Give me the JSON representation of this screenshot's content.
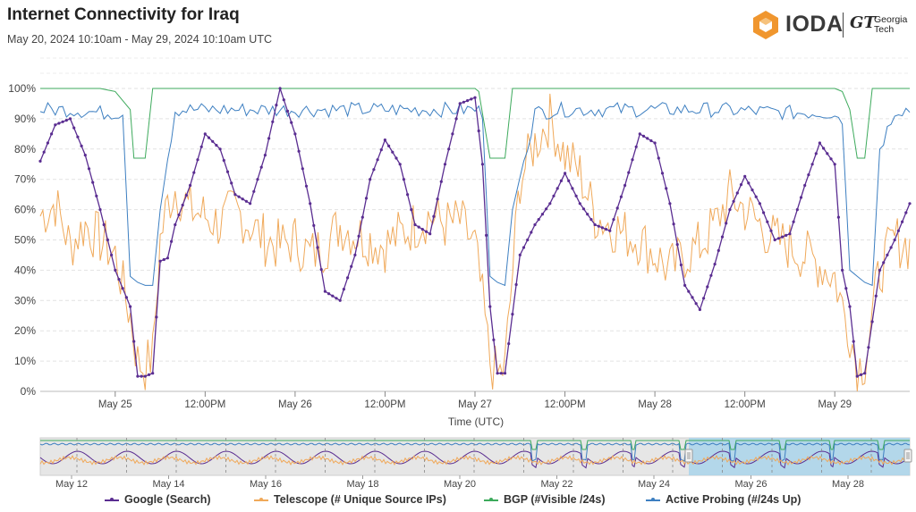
{
  "header": {
    "title": "Internet Connectivity for Iraq",
    "subtitle": "May 20, 2024 10:10am - May 29, 2024 10:10am UTC"
  },
  "logo": {
    "brand": "IODA",
    "partner_mark": "GT",
    "partner_name_line1": "Georgia",
    "partner_name_line2": "Tech"
  },
  "chart_data": {
    "type": "line",
    "xlabel": "Time (UTC)",
    "ylabel": "",
    "ylim": [
      0,
      100
    ],
    "y_ticks": [
      "0%",
      "10%",
      "20%",
      "30%",
      "40%",
      "50%",
      "60%",
      "70%",
      "80%",
      "90%",
      "100%"
    ],
    "x_ticks": [
      "May 25",
      "12:00PM",
      "May 26",
      "12:00PM",
      "May 27",
      "12:00PM",
      "May 28",
      "12:00PM",
      "May 29"
    ],
    "x_tick_hours": [
      0,
      12,
      24,
      36,
      48,
      60,
      72,
      84,
      96
    ],
    "x_range_hours": [
      -10,
      106
    ],
    "colors": {
      "google": "#5a2d91",
      "telescope": "#f0a95a",
      "bgp": "#3daa5c",
      "active_probing": "#3d7fc1"
    },
    "series": [
      {
        "name": "Google (Search)",
        "key": "google",
        "x": [
          -10,
          -8,
          -6,
          -4,
          -2,
          0,
          2,
          3,
          4,
          5,
          6,
          7,
          8,
          10,
          12,
          14,
          16,
          18,
          20,
          22,
          24,
          26,
          28,
          30,
          32,
          34,
          36,
          38,
          40,
          42,
          44,
          46,
          48,
          49,
          50,
          51,
          52,
          54,
          56,
          58,
          60,
          62,
          64,
          66,
          68,
          70,
          72,
          74,
          76,
          78,
          80,
          82,
          84,
          86,
          88,
          90,
          92,
          94,
          96,
          97,
          98,
          99,
          100,
          102,
          104,
          106
        ],
        "values": [
          76,
          88,
          90,
          78,
          60,
          40,
          28,
          5,
          5,
          6,
          43,
          44,
          55,
          68,
          85,
          80,
          65,
          62,
          78,
          100,
          85,
          62,
          33,
          30,
          45,
          70,
          83,
          75,
          55,
          52,
          75,
          95,
          97,
          75,
          28,
          6,
          6,
          45,
          55,
          62,
          72,
          62,
          55,
          53,
          68,
          85,
          82,
          62,
          35,
          27,
          42,
          60,
          71,
          62,
          50,
          52,
          68,
          82,
          75,
          40,
          28,
          5,
          6,
          40,
          50,
          62
        ]
      },
      {
        "name": "Telescope (# Unique Source IPs)",
        "key": "telescope",
        "x": [
          -10,
          -8,
          -6,
          -4,
          -2,
          0,
          2,
          3,
          4,
          5,
          6,
          7,
          8,
          10,
          12,
          14,
          16,
          18,
          20,
          22,
          24,
          26,
          28,
          30,
          32,
          34,
          36,
          38,
          40,
          42,
          44,
          46,
          48,
          49,
          50,
          51,
          52,
          54,
          56,
          58,
          60,
          62,
          64,
          66,
          68,
          70,
          72,
          74,
          76,
          78,
          80,
          82,
          84,
          86,
          88,
          90,
          92,
          94,
          96,
          97,
          98,
          99,
          100,
          102,
          104,
          106
        ],
        "values": [
          58,
          62,
          48,
          55,
          50,
          45,
          25,
          10,
          8,
          12,
          50,
          62,
          67,
          60,
          58,
          55,
          60,
          55,
          50,
          48,
          50,
          45,
          48,
          55,
          52,
          50,
          48,
          52,
          55,
          58,
          55,
          56,
          48,
          30,
          10,
          5,
          8,
          70,
          82,
          90,
          78,
          72,
          58,
          55,
          52,
          50,
          45,
          40,
          45,
          48,
          55,
          65,
          60,
          55,
          50,
          48,
          45,
          42,
          38,
          28,
          20,
          8,
          10,
          40,
          50,
          48
        ]
      },
      {
        "name": "BGP (#Visible /24s)",
        "key": "bgp",
        "x": [
          -10,
          -2,
          0,
          2,
          2.5,
          3,
          4,
          5,
          6,
          10,
          40,
          48,
          48.5,
          50,
          51,
          52,
          53,
          60,
          96,
          97,
          98,
          99,
          100,
          101,
          106
        ],
        "values": [
          100,
          100,
          99,
          93,
          77,
          77,
          77,
          100,
          100,
          100,
          100,
          100,
          99,
          77,
          77,
          77,
          100,
          100,
          100,
          99,
          93,
          77,
          77,
          100,
          100
        ]
      },
      {
        "name": "Active Probing (#/24s Up)",
        "key": "active_probing",
        "x": [
          -10,
          -6,
          -2,
          0,
          1,
          2,
          3,
          4,
          5,
          6,
          8,
          12,
          20,
          30,
          40,
          48,
          49,
          50,
          51,
          52,
          53,
          56,
          60,
          70,
          80,
          90,
          95,
          96,
          97,
          98,
          99,
          100,
          101,
          102,
          104,
          106
        ],
        "values": [
          93,
          93,
          92,
          92,
          92,
          38,
          36,
          35,
          35,
          60,
          93,
          93,
          93,
          93,
          93,
          93,
          92,
          38,
          36,
          35,
          60,
          92,
          93,
          93,
          93,
          92,
          92,
          92,
          89,
          40,
          38,
          36,
          35,
          80,
          93,
          93
        ]
      }
    ],
    "navigator": {
      "x_ticks": [
        "May 12",
        "May 14",
        "May 16",
        "May 18",
        "May 20",
        "May 22",
        "May 24",
        "May 26",
        "May 28"
      ]
    }
  },
  "axis": {
    "xlabel": "Time (UTC)"
  },
  "legend": [
    {
      "label": "Google (Search)",
      "color": "#5a2d91"
    },
    {
      "label": "Telescope (# Unique Source IPs)",
      "color": "#f0a95a"
    },
    {
      "label": "BGP (#Visible /24s)",
      "color": "#3daa5c"
    },
    {
      "label": "Active Probing (#/24s Up)",
      "color": "#3d7fc1"
    }
  ]
}
